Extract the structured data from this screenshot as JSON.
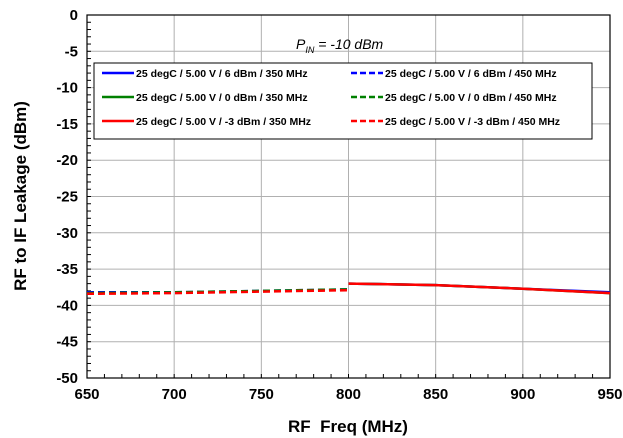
{
  "chart_data": {
    "type": "line",
    "xlabel": "RF  Freq (MHz)",
    "ylabel": "RF to IF Leakage (dBm)",
    "xlim": [
      650,
      950
    ],
    "ylim": [
      -50,
      0
    ],
    "xticks": [
      650,
      700,
      750,
      800,
      850,
      900,
      950
    ],
    "yticks": [
      0,
      -5,
      -10,
      -15,
      -20,
      -25,
      -30,
      -35,
      -40,
      -45,
      -50
    ],
    "grid": true,
    "annotation": {
      "main": "P",
      "sub": "IN",
      "rest": " = -10 dBm"
    },
    "legend_position": "top",
    "series": [
      {
        "name": "25 degC / 5.00 V / 6 dBm / 350 MHz",
        "color": "#0000ff",
        "dash": "solid",
        "points": [
          [
            800,
            -37.0
          ],
          [
            850,
            -37.2
          ],
          [
            900,
            -37.7
          ],
          [
            950,
            -38.2
          ]
        ]
      },
      {
        "name": "25 degC / 5.00 V / 6 dBm / 450 MHz",
        "color": "#0000ff",
        "dash": "dashed",
        "points": [
          [
            650,
            -38.2
          ],
          [
            700,
            -38.2
          ],
          [
            750,
            -38.0
          ],
          [
            800,
            -37.8
          ]
        ]
      },
      {
        "name": "25 degC / 5.00 V / 0 dBm / 350 MHz",
        "color": "#008000",
        "dash": "solid",
        "points": [
          [
            800,
            -37.0
          ],
          [
            850,
            -37.2
          ],
          [
            900,
            -37.7
          ],
          [
            950,
            -38.3
          ]
        ]
      },
      {
        "name": "25 degC / 5.00 V / 0 dBm / 450 MHz",
        "color": "#008000",
        "dash": "dashed",
        "points": [
          [
            650,
            -38.3
          ],
          [
            700,
            -38.2
          ],
          [
            750,
            -38.0
          ],
          [
            800,
            -37.8
          ]
        ]
      },
      {
        "name": "25 degC / 5.00 V / -3 dBm / 350 MHz",
        "color": "#ff0000",
        "dash": "solid",
        "points": [
          [
            800,
            -37.0
          ],
          [
            850,
            -37.2
          ],
          [
            900,
            -37.7
          ],
          [
            950,
            -38.3
          ]
        ]
      },
      {
        "name": "25 degC / 5.00 V / -3 dBm / 450 MHz",
        "color": "#ff0000",
        "dash": "dashed",
        "points": [
          [
            650,
            -38.4
          ],
          [
            700,
            -38.3
          ],
          [
            750,
            -38.1
          ],
          [
            800,
            -37.9
          ]
        ]
      }
    ]
  }
}
